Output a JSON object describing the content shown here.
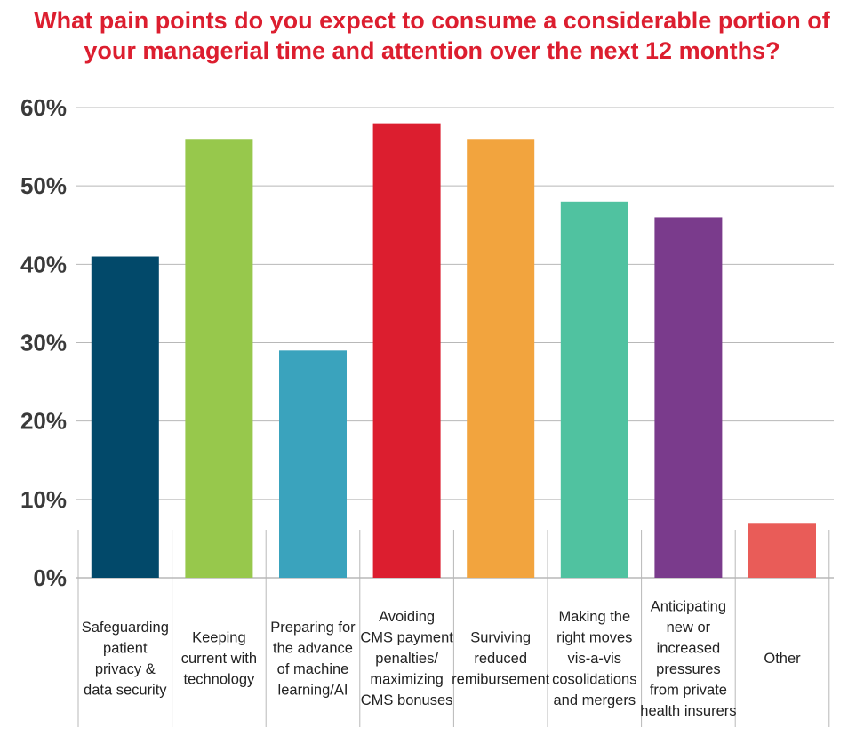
{
  "title_lines": [
    "What pain points do you expect to consume a considerable portion of",
    "your managerial time and attention over the next 12 months?"
  ],
  "colors": {
    "title": "#dc1e2f",
    "grid": "#b8b8b8",
    "tick_text": "#3a3a3a",
    "category_text": "#222222"
  },
  "chart_data": {
    "type": "bar",
    "title": "What pain points do you expect to consume a considerable portion of your managerial time and attention over the next 12 months?",
    "xlabel": "",
    "ylabel": "",
    "ylim": [
      0,
      60
    ],
    "yticks": [
      "0%",
      "10%",
      "20%",
      "30%",
      "40%",
      "50%",
      "60%"
    ],
    "grid": true,
    "categories": [
      [
        "Safeguarding",
        "patient",
        "privacy &",
        "data security"
      ],
      [
        "Keeping",
        "current with",
        "technology"
      ],
      [
        "Preparing for",
        "the advance",
        "of machine",
        "learning/AI"
      ],
      [
        "Avoiding",
        "CMS payment",
        "penalties/",
        "maximizing",
        "CMS bonuses"
      ],
      [
        "Surviving",
        "reduced",
        "remibursement"
      ],
      [
        "Making the",
        "right moves",
        "vis-a-vis",
        "cosolidations",
        "and mergers"
      ],
      [
        "Anticipating",
        "new or",
        "increased",
        "pressures",
        "from private",
        "health insurers"
      ],
      [
        "Other"
      ]
    ],
    "values": [
      41,
      56,
      29,
      58,
      56,
      48,
      46,
      7
    ],
    "bar_colors": [
      "#02496a",
      "#97c84c",
      "#3aa3bd",
      "#dc1e2f",
      "#f2a43e",
      "#50c2a0",
      "#7a3b8c",
      "#e95c58"
    ]
  }
}
